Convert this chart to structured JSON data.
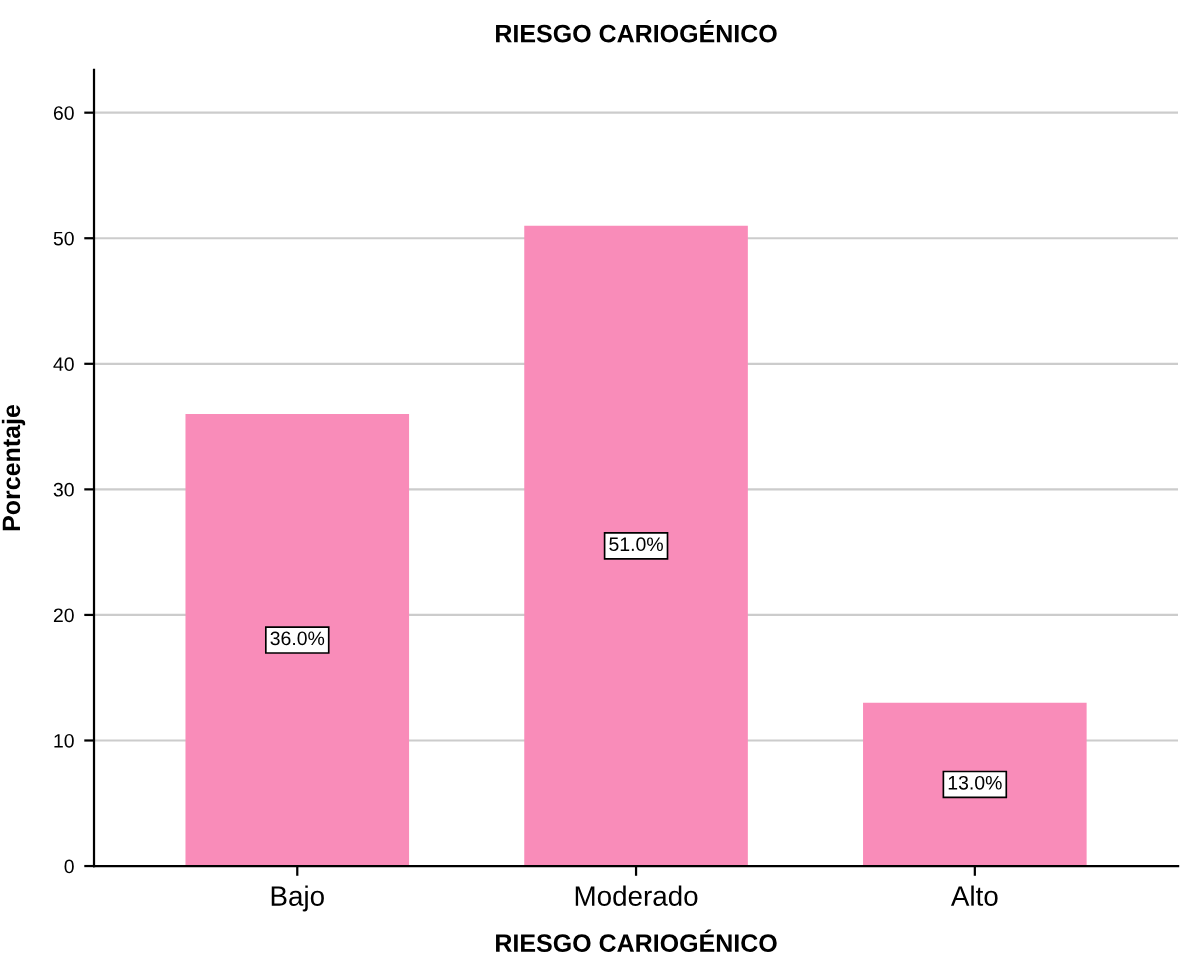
{
  "chart_data": {
    "type": "bar",
    "title": "RIESGO CARIOGÉNICO",
    "xlabel": "RIESGO CARIOGÉNICO",
    "ylabel": "Porcentaje",
    "categories": [
      "Bajo",
      "Moderado",
      "Alto"
    ],
    "values": [
      36.0,
      51.0,
      13.0
    ],
    "color": "#f98cb9",
    "value_labels": [
      "36.0%",
      "51.0%",
      "13.0%"
    ],
    "ylim": [
      0,
      63.4
    ],
    "yticks": [
      0,
      10,
      20,
      30,
      40,
      50,
      60
    ],
    "grid": "y"
  }
}
